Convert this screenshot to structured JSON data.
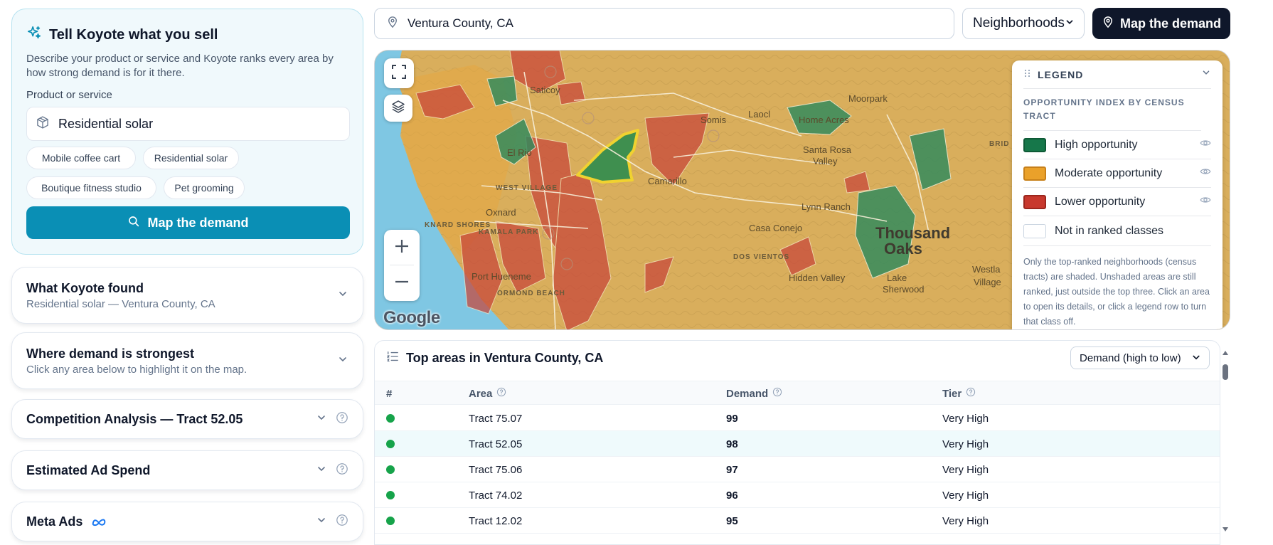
{
  "hero": {
    "title": "Tell Koyote what you sell",
    "description": "Describe your product or service and Koyote ranks every area by how strong demand is for it there.",
    "field_label": "Product or service",
    "input_value": "Residential solar",
    "chips": [
      "Mobile coffee cart",
      "Residential solar",
      "Boutique fitness studio",
      "Pet grooming"
    ],
    "button_label": "Map the demand"
  },
  "accordions": {
    "found": {
      "title": "What Koyote found",
      "subtitle": "Residential solar — Ventura County, CA"
    },
    "strongest": {
      "title": "Where demand is strongest",
      "subtitle": "Click any area below to highlight it on the map."
    },
    "competition": {
      "title": "Competition Analysis — Tract 52.05"
    },
    "adspend": {
      "title": "Estimated Ad Spend"
    },
    "meta": {
      "title": "Meta Ads"
    }
  },
  "topbar": {
    "location_value": "Ventura County, CA",
    "granularity": "Neighborhoods",
    "button_label": "Map the demand"
  },
  "map": {
    "places": {
      "saticoy": "Saticoy",
      "somis": "Somis",
      "moorpark": "Moorpark",
      "laocl": "Laocl",
      "home_acres": "Home Acres",
      "santa_rosa": "Santa Rosa",
      "valley": "Valley",
      "el_rio": "El Rio",
      "west_village": "WEST VILLAGE",
      "oxnard": "Oxnard",
      "oxnard_shores": "KNARD SHORES",
      "kamala_park": "KAMALA PARK",
      "camarillo": "Camarillo",
      "lynn_ranch": "Lynn Ranch",
      "casa_conejo": "Casa Conejo",
      "thousand_oaks": "Thousand",
      "oaks": "Oaks",
      "dos_vientos": "DOS VIENTOS",
      "hidden_valley": "Hidden Valley",
      "port_hueneme": "Port Hueneme",
      "ormond_beach": "ORMOND BEACH",
      "lake": "Lake",
      "sherwood": "Sherwood",
      "westlake": "Westla",
      "village": "Village",
      "brid": "BRID"
    },
    "google_label": "Google"
  },
  "legend": {
    "title": "LEGEND",
    "subtitle": "OPPORTUNITY INDEX BY CENSUS TRACT",
    "items": [
      {
        "label": "High opportunity",
        "color": "#16774a"
      },
      {
        "label": "Moderate opportunity",
        "color": "#eaa12a"
      },
      {
        "label": "Lower opportunity",
        "color": "#c8382d"
      },
      {
        "label": "Not in ranked classes",
        "color": "#ffffff"
      }
    ],
    "note": "Only the top-ranked neighborhoods (census tracts) are shaded. Unshaded areas are still ranked, just outside the top three. Click an area to open its details, or click a legend row to turn that class off."
  },
  "table": {
    "title": "Top areas in Ventura County, CA",
    "sort": "Demand (high to low)",
    "columns": {
      "rank": "#",
      "area": "Area",
      "demand": "Demand",
      "tier": "Tier"
    },
    "rows": [
      {
        "area": "Tract 75.07",
        "demand": "99",
        "tier": "Very High"
      },
      {
        "area": "Tract 52.05",
        "demand": "98",
        "tier": "Very High"
      },
      {
        "area": "Tract 75.06",
        "demand": "97",
        "tier": "Very High"
      },
      {
        "area": "Tract 74.02",
        "demand": "96",
        "tier": "Very High"
      },
      {
        "area": "Tract 12.02",
        "demand": "95",
        "tier": "Very High"
      }
    ]
  }
}
